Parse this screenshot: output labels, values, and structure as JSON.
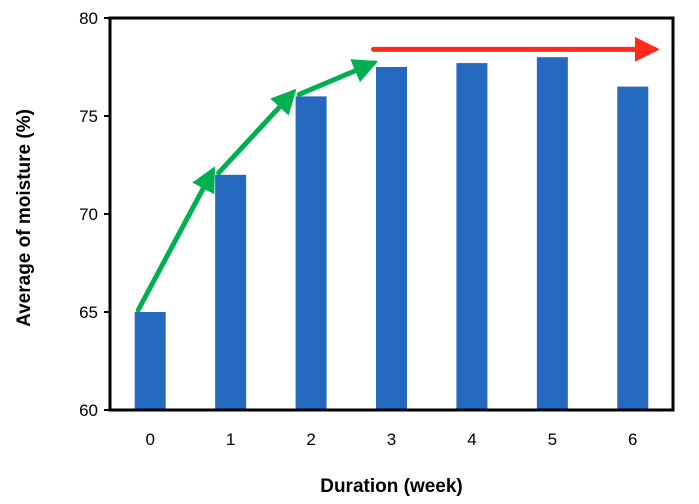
{
  "chart_data": {
    "type": "bar",
    "categories": [
      "0",
      "1",
      "2",
      "3",
      "4",
      "5",
      "6"
    ],
    "values": [
      65,
      72,
      76,
      77.5,
      77.7,
      78,
      76.5
    ],
    "xlabel": "Duration (week)",
    "ylabel": "Average of moisture (%)",
    "ylim": [
      60,
      80
    ],
    "yticks": [
      "60",
      "65",
      "70",
      "75",
      "80"
    ],
    "grid": false,
    "legend": "none",
    "bar_color": "#2568BF",
    "annotations": {
      "green_arrows_color": "#00B050",
      "red_arrow_color": "#FF2A1A"
    }
  }
}
